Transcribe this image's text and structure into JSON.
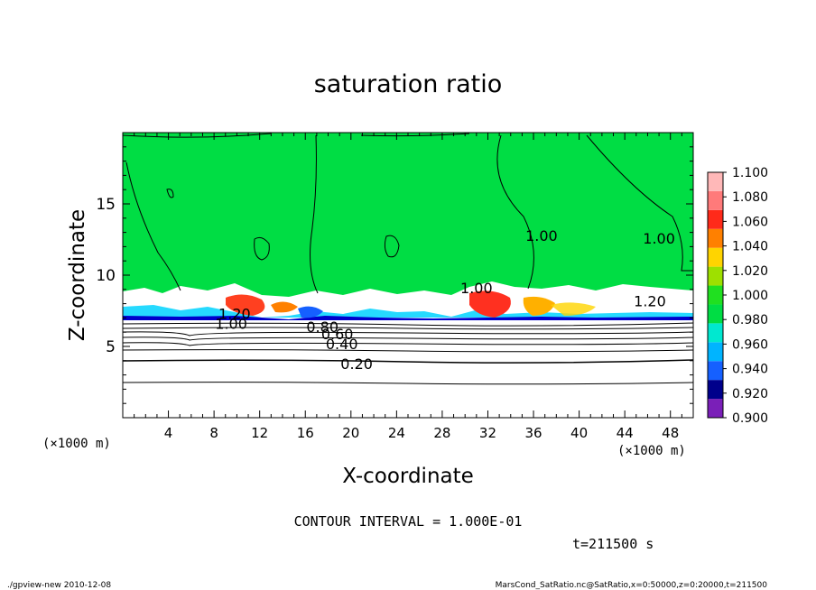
{
  "chart_data": {
    "type": "heatmap",
    "title": "saturation ratio",
    "xlabel": "X-coordinate",
    "ylabel": "Z-coordinate",
    "x_unit": "(×1000 m)",
    "y_unit": "(×1000 m)",
    "xlim": [
      0,
      50
    ],
    "ylim": [
      0,
      20
    ],
    "x_ticks": [
      4,
      8,
      12,
      16,
      20,
      24,
      28,
      32,
      36,
      40,
      44,
      48
    ],
    "y_ticks": [
      5,
      10,
      15
    ],
    "colorbar": {
      "levels": [
        0.9,
        0.92,
        0.94,
        0.96,
        0.98,
        1.0,
        1.02,
        1.04,
        1.06,
        1.08,
        1.1
      ],
      "labels": [
        "0.900",
        "0.920",
        "0.940",
        "0.960",
        "0.980",
        "1.000",
        "1.020",
        "1.040",
        "1.060",
        "1.080",
        "1.100"
      ],
      "colors": [
        "#7a1fb8",
        "#00008b",
        "#1560ff",
        "#00b4ff",
        "#00e8d0",
        "#00dd44",
        "#20e020",
        "#9ee000",
        "#ffd400",
        "#ff8000",
        "#ff2a1a",
        "#ff7a7a",
        "#ffb8b8"
      ]
    },
    "contour_labels": [
      {
        "text": "0.20",
        "x": 20.5,
        "z": 3.8
      },
      {
        "text": "0.40",
        "x": 19.2,
        "z": 5.2
      },
      {
        "text": "0.60",
        "x": 18.8,
        "z": 5.9
      },
      {
        "text": "0.80",
        "x": 17.5,
        "z": 6.4
      },
      {
        "text": "1.00",
        "x": 9.5,
        "z": 6.6
      },
      {
        "text": "1.20",
        "x": 9.8,
        "z": 7.3
      },
      {
        "text": "1.00",
        "x": 31.0,
        "z": 9.1
      },
      {
        "text": "1.00",
        "x": 36.7,
        "z": 12.8
      },
      {
        "text": "1.00",
        "x": 47.0,
        "z": 12.6
      },
      {
        "text": "1.20",
        "x": 46.2,
        "z": 8.2
      }
    ],
    "contour_interval": "CONTOUR INTERVAL = 1.000E-01",
    "time_label": "t=211500 s"
  },
  "footer": {
    "left": "./gpview-new  2010-12-08",
    "right": "MarsCond_SatRatio.nc@SatRatio,x=0:50000,z=0:20000,t=211500"
  }
}
